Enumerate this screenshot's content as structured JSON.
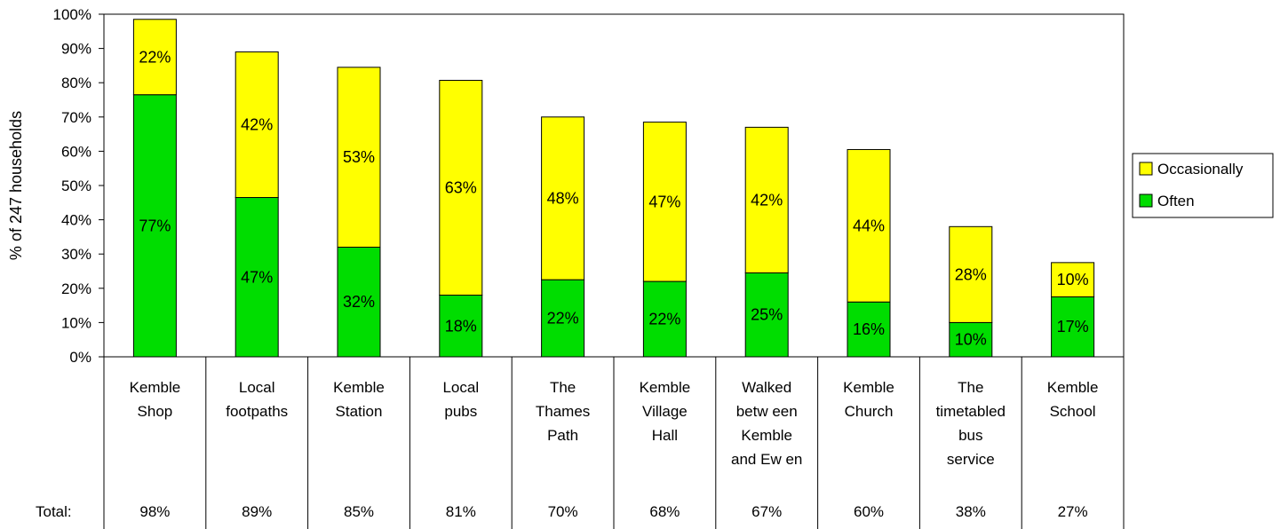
{
  "chart_data": {
    "type": "bar",
    "stacked": true,
    "ylabel": "% of 247 households",
    "ylim": [
      0,
      100
    ],
    "yticks": [
      "0%",
      "10%",
      "20%",
      "30%",
      "40%",
      "50%",
      "60%",
      "70%",
      "80%",
      "90%",
      "100%"
    ],
    "categories": [
      [
        "Kemble",
        "Shop"
      ],
      [
        "Local",
        "footpaths"
      ],
      [
        "Kemble",
        "Station"
      ],
      [
        "Local",
        "pubs"
      ],
      [
        "The",
        "Thames",
        "Path"
      ],
      [
        "Kemble",
        "Village",
        "Hall"
      ],
      [
        "Walked",
        "betw een",
        "Kemble",
        "and Ew en"
      ],
      [
        "Kemble",
        "Church"
      ],
      [
        "The",
        "timetabled",
        "bus",
        "service"
      ],
      [
        "Kemble",
        "School"
      ]
    ],
    "series": [
      {
        "name": "Often",
        "color": "#00dd00",
        "values": [
          76.5,
          46.5,
          32,
          18,
          22.5,
          22,
          24.5,
          16,
          10,
          17.5
        ],
        "labels": [
          "77%",
          "47%",
          "32%",
          "18%",
          "22%",
          "22%",
          "25%",
          "16%",
          "10%",
          "17%"
        ]
      },
      {
        "name": "Occasionally",
        "color": "#ffff00",
        "values": [
          22,
          42.5,
          52.5,
          62.7,
          47.5,
          46.5,
          42.5,
          44.5,
          28,
          10
        ],
        "labels": [
          "22%",
          "42%",
          "53%",
          "63%",
          "48%",
          "47%",
          "42%",
          "44%",
          "28%",
          "10%"
        ]
      }
    ],
    "totals_label": "Total:",
    "totals": [
      "98%",
      "89%",
      "85%",
      "81%",
      "70%",
      "68%",
      "67%",
      "60%",
      "38%",
      "27%"
    ],
    "legend": [
      "Occasionally",
      "Often"
    ],
    "legend_position": "right",
    "grid": false
  }
}
